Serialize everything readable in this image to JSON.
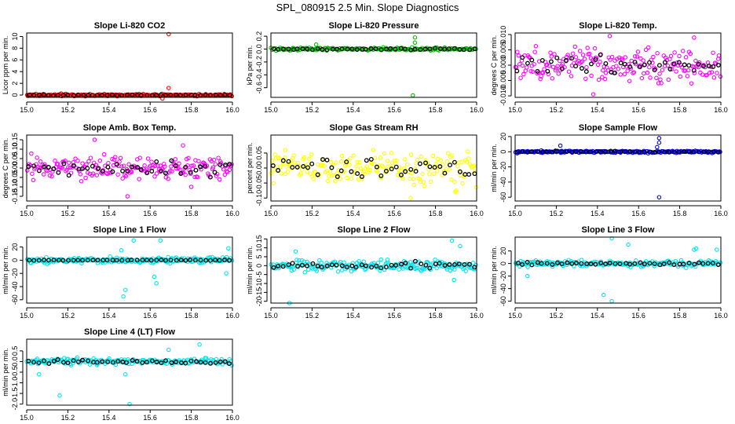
{
  "figure": {
    "title": "SPL_080915  2.5 Min. Slope Diagnostics"
  },
  "chart_data": [
    {
      "type": "scatter",
      "title": "Slope Li-820 CO2",
      "ylabel": "Licor ppm per min.",
      "color": "#ff0000",
      "xlim": [
        15.0,
        16.0
      ],
      "ylim": [
        -0.4,
        10.6
      ],
      "xticks": [
        15.0,
        15.2,
        15.4,
        15.6,
        15.8,
        16.0
      ],
      "xtick_labels": [
        "15.0",
        "15.2",
        "15.4",
        "15.6",
        "15.8",
        "16.0"
      ],
      "yticks": [
        0,
        2,
        4,
        6,
        8,
        10
      ],
      "ytick_labels": [
        "0",
        "2",
        "4",
        "6",
        "8",
        "10"
      ],
      "noise": {
        "center": 0.0,
        "spread": 0.15,
        "black_spread": 0.05
      },
      "outliers": [
        [
          15.69,
          10.4
        ],
        [
          15.69,
          1.2
        ],
        [
          15.66,
          -0.6
        ]
      ]
    },
    {
      "type": "scatter",
      "title": "Slope Li-820 Pressure",
      "ylabel": "kPa per min.",
      "color": "#00c000",
      "xlim": [
        15.0,
        16.0
      ],
      "ylim": [
        -0.75,
        0.25
      ],
      "xticks": [
        15.0,
        15.2,
        15.4,
        15.6,
        15.8,
        16.0
      ],
      "xtick_labels": [
        "15.0",
        "15.2",
        "15.4",
        "15.6",
        "15.8",
        "16.0"
      ],
      "yticks": [
        -0.6,
        -0.4,
        -0.2,
        0.0,
        0.2
      ],
      "ytick_labels": [
        "-0.6",
        "-0.4",
        "-0.2",
        "0.0",
        "0.2"
      ],
      "noise": {
        "center": 0.0,
        "spread": 0.02,
        "black_spread": 0.01
      },
      "outliers": [
        [
          15.22,
          0.07
        ],
        [
          15.7,
          0.18
        ],
        [
          15.7,
          0.1
        ],
        [
          15.69,
          -0.72
        ]
      ]
    },
    {
      "type": "scatter",
      "title": "Slope Li-820 Temp.",
      "ylabel": "degrees C per min.",
      "color": "#ff00ff",
      "xlim": [
        15.0,
        16.0
      ],
      "ylim": [
        -0.0105,
        0.0105
      ],
      "xticks": [
        15.0,
        15.2,
        15.4,
        15.6,
        15.8,
        16.0
      ],
      "xtick_labels": [
        "15.0",
        "15.2",
        "15.4",
        "15.6",
        "15.8",
        "16.0"
      ],
      "yticks": [
        -0.01,
        -0.005,
        0.0,
        0.005,
        0.01
      ],
      "ytick_labels": [
        "-0.010",
        "-0.005",
        "0.000",
        "0.005",
        "0.010"
      ],
      "noise": {
        "center": 0.0,
        "spread": 0.0045,
        "black_spread": 0.0025
      },
      "outliers": [
        [
          15.46,
          0.0095
        ],
        [
          15.87,
          0.009
        ],
        [
          15.38,
          -0.0095
        ]
      ]
    },
    {
      "type": "scatter",
      "title": "Slope Amb. Box Temp.",
      "ylabel": "degrees C per min.",
      "color": "#ff00ff",
      "xlim": [
        15.0,
        16.0
      ],
      "ylim": [
        -0.175,
        0.175
      ],
      "xticks": [
        15.0,
        15.2,
        15.4,
        15.6,
        15.8,
        16.0
      ],
      "xtick_labels": [
        "15.0",
        "15.2",
        "15.4",
        "15.6",
        "15.8",
        "16.0"
      ],
      "yticks": [
        -0.15,
        -0.1,
        -0.05,
        0.0,
        0.05,
        0.1,
        0.15
      ],
      "ytick_labels": [
        "-0.15",
        "-0.10",
        "-0.05",
        "0.00",
        "0.05",
        "0.10",
        "0.15"
      ],
      "noise": {
        "center": 0.0,
        "spread": 0.05,
        "black_spread": 0.03
      },
      "outliers": [
        [
          15.33,
          0.15
        ],
        [
          15.76,
          0.12
        ],
        [
          15.8,
          -0.1
        ],
        [
          15.49,
          -0.15
        ]
      ]
    },
    {
      "type": "scatter",
      "title": "Slope Gas Stream RH",
      "ylabel": "percent per min.",
      "color": "#ffff00",
      "xlim": [
        15.0,
        16.0
      ],
      "ylim": [
        -0.11,
        0.11
      ],
      "xticks": [
        15.0,
        15.2,
        15.4,
        15.6,
        15.8,
        16.0
      ],
      "xtick_labels": [
        "15.0",
        "15.2",
        "15.4",
        "15.6",
        "15.8",
        "16.0"
      ],
      "yticks": [
        -0.1,
        -0.05,
        0.0,
        0.05
      ],
      "ytick_labels": [
        "-0.10",
        "-0.05",
        "0.00",
        "0.05"
      ],
      "noise": {
        "center": 0.0,
        "spread": 0.045,
        "black_spread": 0.03
      },
      "outliers": [
        [
          15.68,
          -0.1
        ],
        [
          15.07,
          0.06
        ]
      ]
    },
    {
      "type": "scatter",
      "title": "Slope Sample Flow",
      "ylabel": "ml/min per min.",
      "color": "#0000ff",
      "xlim": [
        15.0,
        16.0
      ],
      "ylim": [
        -65,
        22
      ],
      "xticks": [
        15.0,
        15.2,
        15.4,
        15.6,
        15.8,
        16.0
      ],
      "xtick_labels": [
        "15.0",
        "15.2",
        "15.4",
        "15.6",
        "15.8",
        "16.0"
      ],
      "yticks": [
        -60,
        -40,
        -20,
        0,
        20
      ],
      "ytick_labels": [
        "-60",
        "-40",
        "-20",
        "0",
        "20"
      ],
      "noise": {
        "center": 0.0,
        "spread": 1.2,
        "black_spread": 0.6
      },
      "outliers": [
        [
          15.7,
          18
        ],
        [
          15.7,
          12
        ],
        [
          15.69,
          6
        ],
        [
          15.22,
          8
        ],
        [
          15.7,
          -60
        ]
      ]
    },
    {
      "type": "scatter",
      "title": "Slope Line 1 Flow",
      "ylabel": "ml/min per min.",
      "color": "#00e5ee",
      "xlim": [
        15.0,
        16.0
      ],
      "ylim": [
        -65,
        35
      ],
      "xticks": [
        15.0,
        15.2,
        15.4,
        15.6,
        15.8,
        16.0
      ],
      "xtick_labels": [
        "15.0",
        "15.2",
        "15.4",
        "15.6",
        "15.8",
        "16.0"
      ],
      "yticks": [
        -60,
        -40,
        -20,
        0,
        20
      ],
      "ytick_labels": [
        "-60",
        "-40",
        "-20",
        "0",
        "20"
      ],
      "noise": {
        "center": 0.0,
        "spread": 4,
        "black_spread": 0.4
      },
      "outliers": [
        [
          15.47,
          -55
        ],
        [
          15.48,
          -45
        ],
        [
          15.63,
          -35
        ],
        [
          15.62,
          -25
        ],
        [
          15.52,
          30
        ],
        [
          15.46,
          15
        ],
        [
          15.98,
          18
        ],
        [
          15.65,
          30
        ],
        [
          15.97,
          -20
        ]
      ]
    },
    {
      "type": "scatter",
      "title": "Slope Line 2 Flow",
      "ylabel": "ml/min per min.",
      "color": "#00e5ee",
      "xlim": [
        15.0,
        16.0
      ],
      "ylim": [
        -21,
        16
      ],
      "xticks": [
        15.0,
        15.2,
        15.4,
        15.6,
        15.8,
        16.0
      ],
      "xtick_labels": [
        "15.0",
        "15.2",
        "15.4",
        "15.6",
        "15.8",
        "16.0"
      ],
      "yticks": [
        -20,
        -15,
        -10,
        -5,
        0,
        5,
        10,
        15
      ],
      "ytick_labels": [
        "-20",
        "-15",
        "-10",
        "-5",
        "0",
        "5",
        "10",
        "15"
      ],
      "noise": {
        "center": 0.0,
        "spread": 2.5,
        "black_spread": 1.5
      },
      "outliers": [
        [
          15.09,
          -21
        ],
        [
          15.88,
          14
        ],
        [
          15.92,
          11
        ],
        [
          15.89,
          -8
        ],
        [
          15.12,
          8
        ]
      ]
    },
    {
      "type": "scatter",
      "title": "Slope Line 3 Flow",
      "ylabel": "ml/min per min.",
      "color": "#00e5ee",
      "xlim": [
        15.0,
        16.0
      ],
      "ylim": [
        -63,
        42
      ],
      "xticks": [
        15.0,
        15.2,
        15.4,
        15.6,
        15.8,
        16.0
      ],
      "xtick_labels": [
        "15.0",
        "15.2",
        "15.4",
        "15.6",
        "15.8",
        "16.0"
      ],
      "yticks": [
        -60,
        -40,
        -20,
        0,
        20
      ],
      "ytick_labels": [
        "-60",
        "-40",
        "-20",
        "0",
        "20"
      ],
      "noise": {
        "center": 0.0,
        "spread": 4,
        "black_spread": 2
      },
      "outliers": [
        [
          15.47,
          -60
        ],
        [
          15.43,
          -50
        ],
        [
          15.47,
          40
        ],
        [
          15.55,
          30
        ],
        [
          15.88,
          24
        ],
        [
          15.87,
          22
        ],
        [
          15.98,
          22
        ],
        [
          15.06,
          -20
        ]
      ]
    },
    {
      "type": "scatter",
      "title": "Slope Line 4 (LT) Flow",
      "ylabel": "ml/min per min.",
      "color": "#00e5ee",
      "xlim": [
        15.0,
        16.0
      ],
      "ylim": [
        -2.05,
        1.05
      ],
      "xticks": [
        15.0,
        15.2,
        15.4,
        15.6,
        15.8,
        16.0
      ],
      "xtick_labels": [
        "15.0",
        "15.2",
        "15.4",
        "15.6",
        "15.8",
        "16.0"
      ],
      "yticks": [
        -2.0,
        -1.5,
        -1.0,
        -0.5,
        0.0,
        0.5
      ],
      "ytick_labels": [
        "-2.0",
        "-1.5",
        "-1.0",
        "-0.5",
        "0.0",
        "0.5"
      ],
      "noise": {
        "center": 0.0,
        "spread": 0.12,
        "black_spread": 0.08
      },
      "outliers": [
        [
          15.16,
          -1.6
        ],
        [
          15.5,
          -2.0
        ],
        [
          15.84,
          0.8
        ],
        [
          15.69,
          0.55
        ],
        [
          15.06,
          -0.6
        ],
        [
          15.48,
          -0.6
        ]
      ]
    }
  ]
}
